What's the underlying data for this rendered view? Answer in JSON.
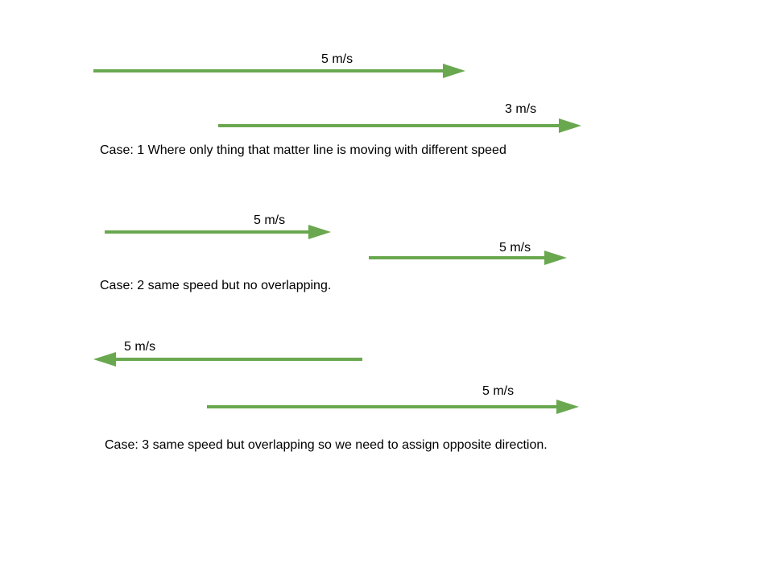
{
  "colors": {
    "arrow": "#6aa84f",
    "text": "#000000",
    "background": "#ffffff"
  },
  "cases": [
    {
      "caption": "Case: 1  Where only thing that matter line is moving with different speed",
      "arrows": [
        {
          "label": "5 m/s",
          "direction": "right"
        },
        {
          "label": "3 m/s",
          "direction": "right"
        }
      ]
    },
    {
      "caption": "Case: 2  same speed but no overlapping.",
      "arrows": [
        {
          "label": "5 m/s",
          "direction": "right"
        },
        {
          "label": "5 m/s",
          "direction": "right"
        }
      ]
    },
    {
      "caption": "Case: 3  same speed but  overlapping so we need to assign opposite direction.",
      "arrows": [
        {
          "label": "5 m/s",
          "direction": "left"
        },
        {
          "label": "5 m/s",
          "direction": "right"
        }
      ]
    }
  ]
}
